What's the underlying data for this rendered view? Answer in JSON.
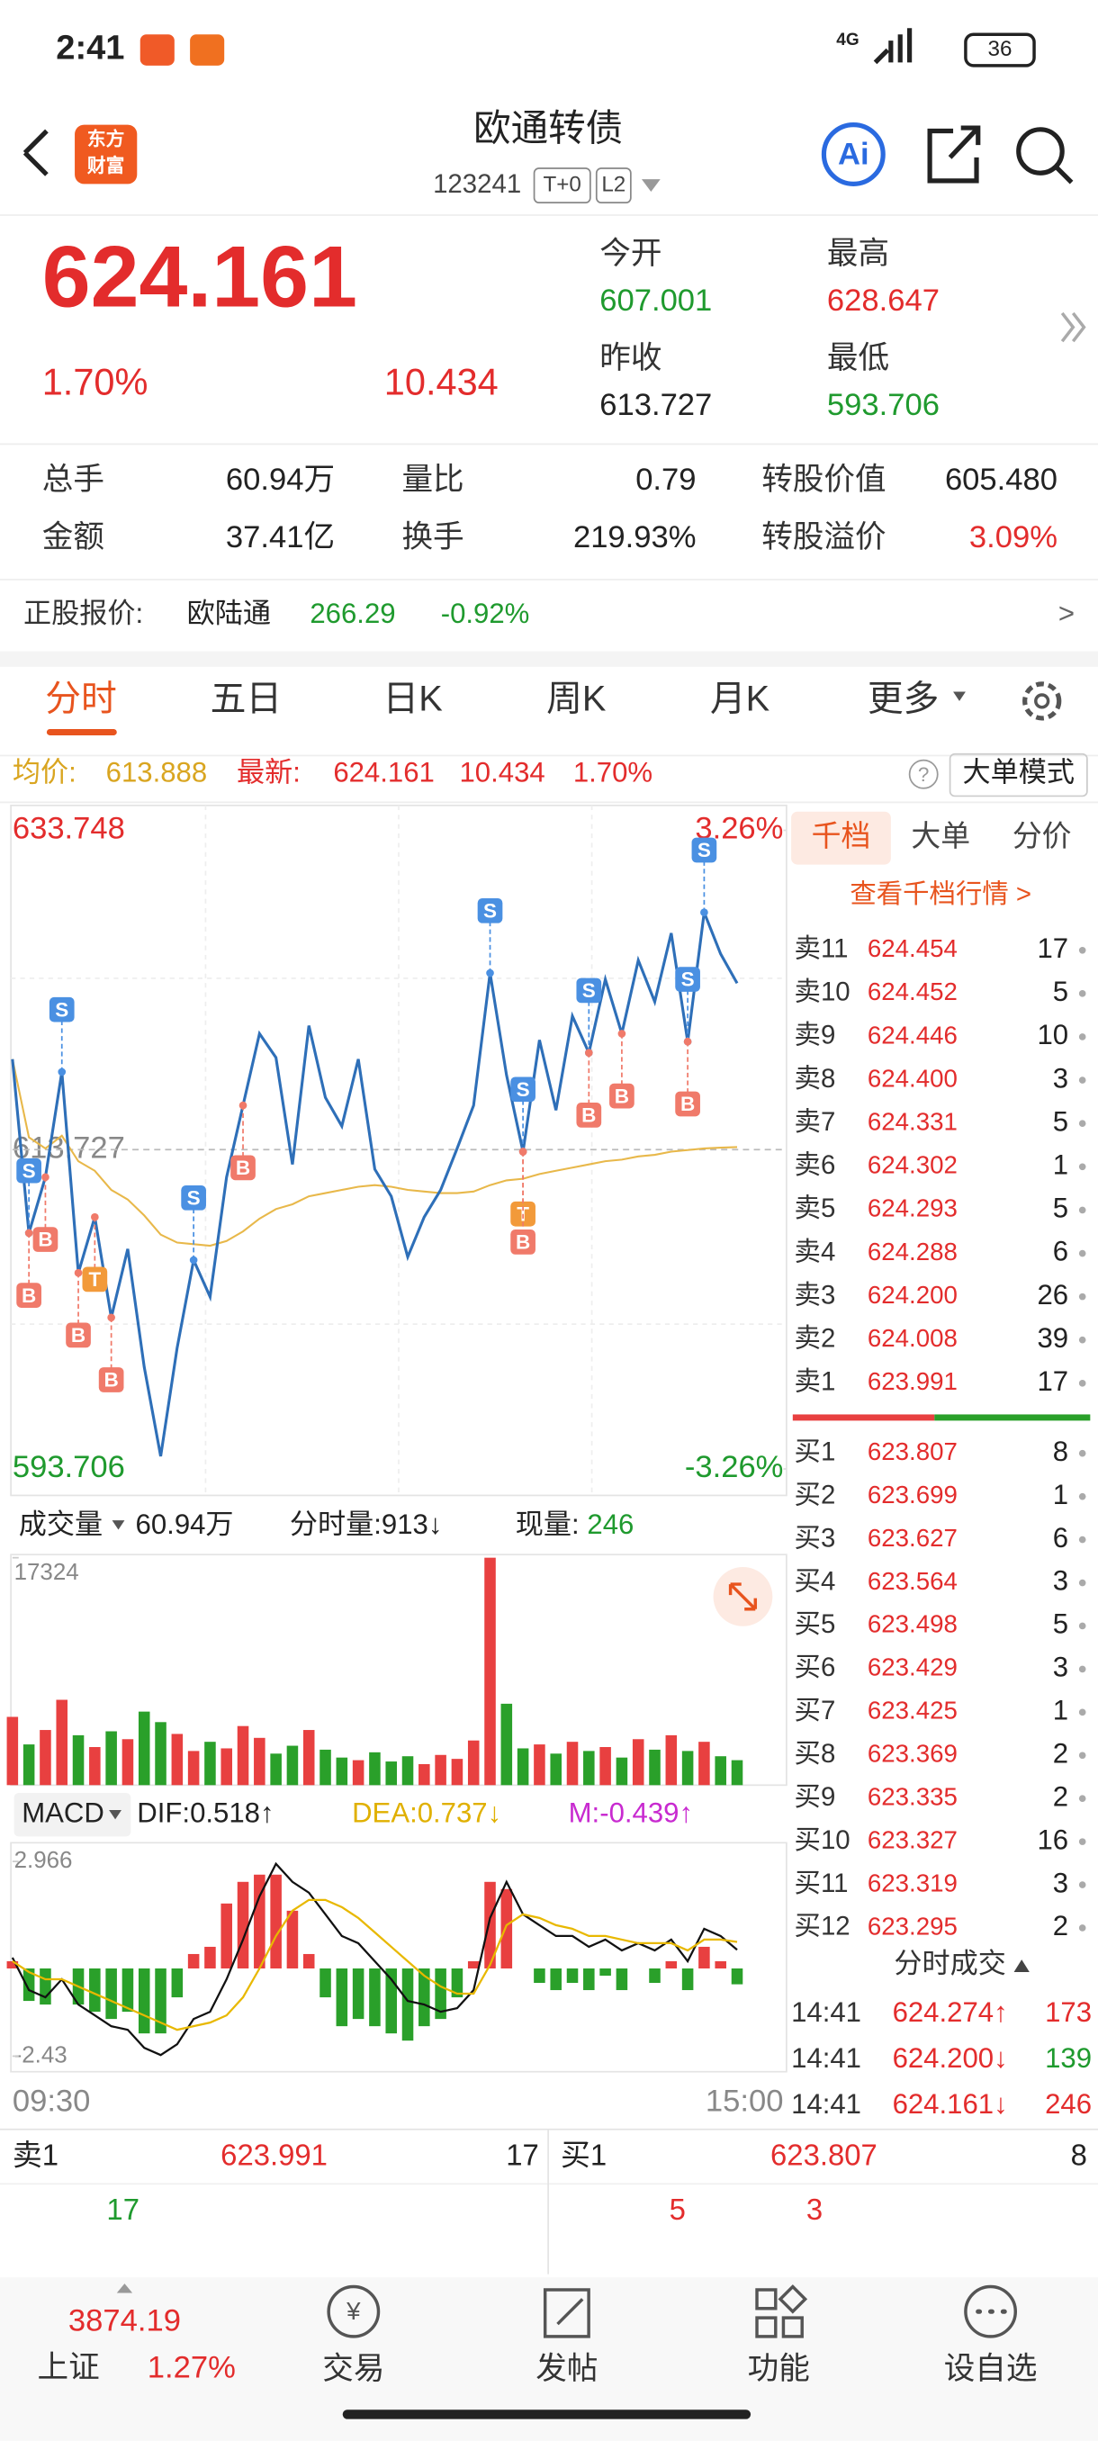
{
  "status": {
    "time": "2:41",
    "network": "4G",
    "battery": "36"
  },
  "header": {
    "logo_top": "东方",
    "logo_bottom": "财富",
    "title": "欧通转债",
    "code": "123241",
    "badge_t0": "T+0",
    "badge_l2": "L2"
  },
  "quote": {
    "price": "624.161",
    "pct": "1.70%",
    "change": "10.434",
    "open_label": "今开",
    "open": "607.001",
    "high_label": "最高",
    "high": "628.647",
    "prev_label": "昨收",
    "prev": "613.727",
    "low_label": "最低",
    "low": "593.706"
  },
  "stats": [
    {
      "label": "总手",
      "value": "60.94万"
    },
    {
      "label": "量比",
      "value": "0.79"
    },
    {
      "label": "转股价值",
      "value": "605.480"
    },
    {
      "label": "金额",
      "value": "37.41亿"
    },
    {
      "label": "换手",
      "value": "219.93%"
    },
    {
      "label": "转股溢价",
      "value": "3.09%"
    }
  ],
  "underlying": {
    "label": "正股报价:",
    "name": "欧陆通",
    "price": "266.29",
    "pct": "-0.92%",
    "more": ">"
  },
  "tabs": [
    "分时",
    "五日",
    "日K",
    "周K",
    "月K",
    "更多"
  ],
  "info": {
    "avg_label": "均价:",
    "avg": "613.888",
    "latest_label": "最新:",
    "latest": "624.161",
    "change": "10.434",
    "pct": "1.70%",
    "help": "?",
    "mode": "大单模式"
  },
  "volume_header": {
    "label": "成交量",
    "total": "60.94万",
    "minute": "分时量:913↓",
    "now_label": "现量:",
    "now": "246"
  },
  "macd_header": {
    "label": "MACD",
    "dif": "DIF:0.518↑",
    "dea": "DEA:0.737↓",
    "m": "M:-0.439↑"
  },
  "order_book": {
    "tabs": [
      "千档",
      "大单",
      "分价"
    ],
    "link": "查看千档行情 >",
    "asks": [
      [
        "卖11",
        "624.454",
        "17"
      ],
      [
        "卖10",
        "624.452",
        "5"
      ],
      [
        "卖9",
        "624.446",
        "10"
      ],
      [
        "卖8",
        "624.400",
        "3"
      ],
      [
        "卖7",
        "624.331",
        "5"
      ],
      [
        "卖6",
        "624.302",
        "1"
      ],
      [
        "卖5",
        "624.293",
        "5"
      ],
      [
        "卖4",
        "624.288",
        "6"
      ],
      [
        "卖3",
        "624.200",
        "26"
      ],
      [
        "卖2",
        "624.008",
        "39"
      ],
      [
        "卖1",
        "623.991",
        "17"
      ]
    ],
    "bids": [
      [
        "买1",
        "623.807",
        "8"
      ],
      [
        "买2",
        "623.699",
        "1"
      ],
      [
        "买3",
        "623.627",
        "6"
      ],
      [
        "买4",
        "623.564",
        "3"
      ],
      [
        "买5",
        "623.498",
        "5"
      ],
      [
        "买6",
        "623.429",
        "3"
      ],
      [
        "买7",
        "623.425",
        "1"
      ],
      [
        "买8",
        "623.369",
        "2"
      ],
      [
        "买9",
        "623.335",
        "2"
      ],
      [
        "买10",
        "623.327",
        "16"
      ],
      [
        "买11",
        "623.319",
        "3"
      ],
      [
        "买12",
        "623.295",
        "2"
      ]
    ],
    "trades_title": "分时成交",
    "trades": [
      {
        "time": "14:41",
        "price": "624.274↑",
        "volume": "173",
        "color": "#e32c2c"
      },
      {
        "time": "14:41",
        "price": "624.200↓",
        "volume": "139",
        "color": "#1f9a2e"
      },
      {
        "time": "14:41",
        "price": "624.161↓",
        "volume": "246",
        "color": "#e32c2c"
      }
    ]
  },
  "bottom_book": {
    "ask": [
      "卖1",
      "623.991",
      "17"
    ],
    "bid": [
      "买1",
      "623.807",
      "8"
    ],
    "row2": [
      "17",
      "5",
      "3"
    ]
  },
  "nav": {
    "index_value": "3874.19",
    "index_name": "上证",
    "index_pct": "1.27%",
    "items": [
      "交易",
      "发帖",
      "功能",
      "设自选"
    ]
  },
  "chart_data": [
    {
      "type": "line",
      "categories": [
        "09:30",
        null,
        null,
        null,
        null,
        null,
        null,
        null,
        null,
        null,
        null,
        null,
        null,
        null,
        null,
        null,
        null,
        null,
        null,
        null,
        null,
        null,
        null,
        null,
        null,
        null,
        null,
        null,
        null,
        null,
        null,
        null,
        null,
        null,
        null,
        null,
        null,
        null,
        null,
        null,
        null,
        null,
        null,
        null,
        null,
        null,
        null,
        "15:00"
      ],
      "series": [
        {
          "color": "#2e6fb8",
          "values": [
            619.4,
            608.5,
            612.0,
            618.6,
            606.0,
            609.5,
            603.2,
            607.5,
            600.1,
            594.5,
            601.3,
            606.8,
            604.5,
            612.0,
            616.5,
            621.0,
            619.5,
            612.8,
            621.5,
            617.0,
            615.2,
            619.4,
            612.5,
            610.8,
            607.0,
            609.5,
            611.2,
            613.8,
            616.5,
            624.8,
            618.4,
            613.6,
            620.6,
            616.2,
            622.1,
            619.8,
            624.4,
            621.0,
            625.6,
            623.0,
            627.3,
            620.5,
            628.6,
            626.0,
            624.161,
            null,
            null,
            null
          ]
        },
        {
          "color": "#e8b84a",
          "values": [
            619.4,
            614.5,
            613.8,
            614.6,
            613.0,
            612.4,
            611.2,
            610.6,
            609.6,
            608.4,
            607.9,
            607.8,
            607.7,
            608.0,
            608.6,
            609.4,
            610.0,
            610.3,
            610.8,
            611.0,
            611.2,
            611.4,
            611.5,
            611.4,
            611.2,
            611.1,
            611.0,
            611.0,
            611.1,
            611.5,
            611.8,
            611.9,
            612.2,
            612.4,
            612.6,
            612.8,
            613.0,
            613.1,
            613.3,
            613.4,
            613.6,
            613.7,
            613.8,
            613.85,
            613.888,
            null,
            null,
            null
          ]
        }
      ],
      "ylim": [
        593.706,
        633.748
      ],
      "yticks": [
        633.748,
        613.727,
        593.706
      ],
      "y2lim": [
        -3.26,
        3.26
      ],
      "y2ticks": [
        {
          "value": 3.26,
          "label": "3.26%"
        },
        {
          "value": -3.26,
          "label": "-3.26%"
        }
      ],
      "signals": [
        {
          "label": "S",
          "point": 1
        },
        {
          "label": "B",
          "point": 1
        },
        {
          "label": "S",
          "point": 3
        },
        {
          "label": "B",
          "point": 2
        },
        {
          "label": "B",
          "point": 4
        },
        {
          "label": "T",
          "point": 5
        },
        {
          "label": "B",
          "point": 6
        },
        {
          "label": "S",
          "point": 11
        },
        {
          "label": "B",
          "point": 14
        },
        {
          "label": "S",
          "point": 29
        },
        {
          "label": "S",
          "point": 31
        },
        {
          "label": "T",
          "point": 31
        },
        {
          "label": "B",
          "point": 31
        },
        {
          "label": "S",
          "point": 35
        },
        {
          "label": "B",
          "point": 35
        },
        {
          "label": "B",
          "point": 37
        },
        {
          "label": "S",
          "point": 41
        },
        {
          "label": "S",
          "point": 42
        },
        {
          "label": "B",
          "point": 41
        }
      ]
    },
    {
      "type": "bar",
      "up_color": "#e84040",
      "down_color": "#2aa02a",
      "values": [
        5200,
        3100,
        4200,
        6500,
        3800,
        2900,
        4100,
        3500,
        5600,
        4800,
        3900,
        2600,
        3300,
        2800,
        4500,
        3600,
        2400,
        3000,
        4200,
        2700,
        2100,
        1900,
        2500,
        1800,
        2200,
        1600,
        2300,
        2000,
        3400,
        17324,
        6200,
        2800,
        3100,
        2400,
        3300,
        2600,
        2900,
        2100,
        3500,
        2700,
        3800,
        2600,
        3300,
        2200,
        1900,
        null,
        null,
        null
      ],
      "ylim": [
        0,
        17324
      ],
      "yticks": [
        17324
      ]
    },
    {
      "type": "macd",
      "series": [
        {
          "color": "#111111",
          "values": [
            0.3,
            -0.6,
            -0.8,
            -0.3,
            -1.0,
            -1.3,
            -1.6,
            -1.7,
            -2.2,
            -2.4,
            -2.1,
            -1.4,
            -1.2,
            -0.3,
            0.8,
            2.0,
            2.9,
            2.4,
            2.1,
            1.5,
            0.9,
            0.7,
            0.2,
            -0.3,
            -0.9,
            -1.0,
            -1.2,
            -1.1,
            -0.6,
            1.4,
            2.4,
            1.5,
            1.2,
            0.9,
            0.9,
            0.6,
            0.8,
            0.5,
            0.7,
            0.5,
            0.8,
            0.2,
            1.1,
            0.9,
            0.518,
            null,
            null,
            null
          ]
        },
        {
          "color": "#e8b800",
          "values": [
            0.2,
            -0.1,
            -0.3,
            -0.3,
            -0.5,
            -0.7,
            -0.9,
            -1.1,
            -1.3,
            -1.5,
            -1.7,
            -1.6,
            -1.5,
            -1.3,
            -0.8,
            0.0,
            0.9,
            1.6,
            1.9,
            1.9,
            1.7,
            1.4,
            1.0,
            0.6,
            0.2,
            -0.2,
            -0.5,
            -0.7,
            -0.7,
            0.1,
            1.2,
            1.5,
            1.4,
            1.2,
            1.1,
            0.9,
            0.9,
            0.8,
            0.7,
            0.7,
            0.7,
            0.5,
            0.8,
            0.8,
            0.737,
            null,
            null,
            null
          ]
        }
      ],
      "bars": {
        "up_color": "#e84040",
        "down_color": "#2aa02a",
        "values": [
          0.2,
          -0.9,
          -1.0,
          0,
          -1.0,
          -1.2,
          -1.4,
          -1.2,
          -1.8,
          -1.8,
          -0.8,
          0.4,
          0.6,
          1.8,
          2.4,
          2.6,
          2.6,
          1.6,
          0.4,
          -0.8,
          -1.6,
          -1.4,
          -1.6,
          -1.8,
          -2.0,
          -1.6,
          -1.4,
          -0.8,
          0.2,
          2.4,
          2.2,
          0,
          -0.4,
          -0.6,
          -0.4,
          -0.6,
          -0.2,
          -0.6,
          0,
          -0.4,
          0.2,
          -0.6,
          0.6,
          0.2,
          -0.439,
          null,
          null,
          null
        ]
      },
      "ylim": [
        -2.43,
        2.966
      ],
      "yticks": [
        2.966,
        -2.43
      ]
    }
  ]
}
